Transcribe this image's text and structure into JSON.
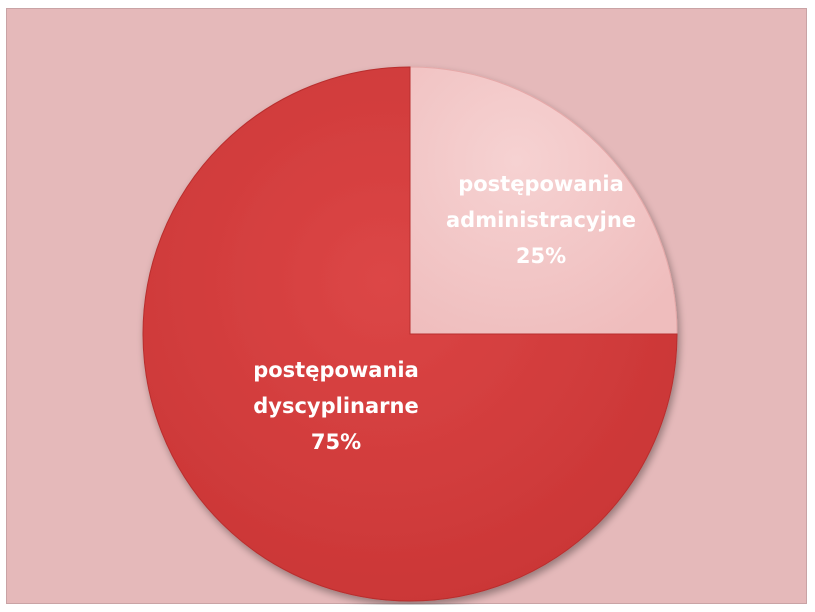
{
  "chart_data": {
    "type": "pie",
    "title": "",
    "slices": [
      {
        "category": "postępowania administracyjne",
        "category_lines": [
          "postępowania",
          "administracyjne"
        ],
        "value": 25,
        "label": "25%",
        "color": "#f2c3c3",
        "label_color": "#ffffff"
      },
      {
        "category": "postępowania dyscyplinarne",
        "category_lines": [
          "postępowania",
          "dyscyplinarne"
        ],
        "value": 75,
        "label": "75%",
        "color": "#d63b3b",
        "label_color": "#ffffff"
      }
    ],
    "start_angle_deg": 0,
    "direction": "clockwise",
    "legend": "none",
    "background_color": "#e5b9ba"
  }
}
